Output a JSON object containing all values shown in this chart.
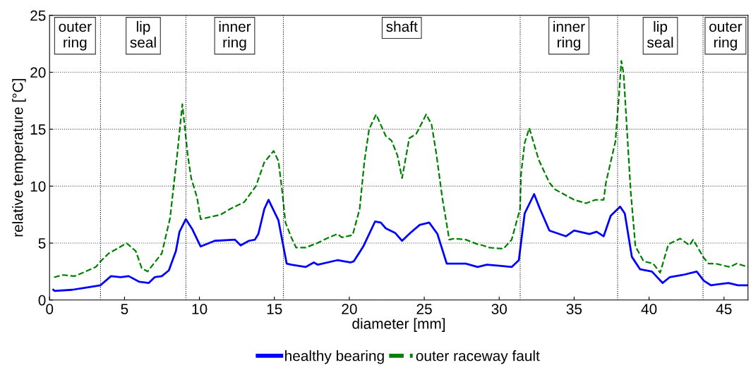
{
  "chart_data": {
    "type": "line",
    "xlabel": "diameter [mm]",
    "ylabel": "relative temperature [°C]",
    "xlim": [
      0,
      46.6
    ],
    "ylim": [
      0,
      25
    ],
    "xticks": [
      0,
      5,
      10,
      15,
      20,
      25,
      30,
      35,
      40,
      45
    ],
    "yticks": [
      0,
      5,
      10,
      15,
      20,
      25
    ],
    "grid": "y",
    "legend": "bottom",
    "ref_lines": [
      {
        "axis": "x",
        "value": 3.4,
        "color": "#000000",
        "line_style": "dotted"
      },
      {
        "axis": "x",
        "value": 9.1,
        "color": "#000000",
        "line_style": "dotted"
      },
      {
        "axis": "x",
        "value": 15.6,
        "color": "#000000",
        "line_style": "dotted"
      },
      {
        "axis": "x",
        "value": 31.4,
        "color": "#000000",
        "line_style": "dotted"
      },
      {
        "axis": "x",
        "value": 37.9,
        "color": "#000000",
        "line_style": "dotted"
      },
      {
        "axis": "x",
        "value": 43.6,
        "color": "#000000",
        "line_style": "dotted"
      }
    ],
    "annotations": [
      "outer\nring",
      "lip\nseal",
      "inner\nring",
      "shaft",
      "inner\nring",
      "lip\nseal",
      "outer\nring"
    ],
    "series": [
      {
        "name": "healthy bearing",
        "color": "#0000ff",
        "line_style": "solid",
        "x": [
          0.25,
          0.33,
          1.51,
          2.45,
          3.4,
          4.1,
          4.74,
          5.28,
          5.99,
          6.62,
          7.01,
          7.49,
          7.96,
          8.43,
          8.67,
          9.09,
          9.53,
          10.08,
          11.02,
          12.37,
          12.75,
          13.3,
          13.7,
          13.93,
          14.33,
          14.61,
          15.27,
          15.5,
          15.82,
          16.13,
          17.08,
          17.63,
          17.9,
          19.2,
          20.07,
          20.3,
          20.93,
          21.72,
          22.1,
          22.43,
          23.05,
          23.52,
          24.07,
          24.7,
          25.33,
          25.88,
          26.5,
          27.14,
          27.77,
          28.56,
          29.18,
          30.13,
          30.83,
          31.31,
          31.7,
          32.33,
          32.72,
          33.35,
          34.45,
          35.0,
          36.02,
          36.5,
          36.97,
          37.44,
          38.07,
          38.38,
          38.85,
          39.4,
          40.19,
          40.9,
          41.37,
          42.24,
          43.18,
          43.65,
          44.12,
          45.3,
          45.93,
          46.6
        ],
        "values": [
          0.9,
          0.8,
          0.9,
          1.1,
          1.3,
          2.1,
          2.0,
          2.1,
          1.6,
          1.5,
          2.0,
          2.1,
          2.6,
          4.3,
          6.0,
          7.1,
          6.2,
          4.7,
          5.2,
          5.3,
          4.8,
          5.2,
          5.3,
          5.8,
          8.0,
          8.8,
          7.0,
          5.4,
          3.2,
          3.1,
          2.9,
          3.3,
          3.1,
          3.5,
          3.3,
          3.4,
          4.7,
          6.9,
          6.8,
          6.3,
          5.9,
          5.2,
          5.9,
          6.6,
          6.8,
          5.8,
          3.2,
          3.2,
          3.2,
          2.9,
          3.1,
          3.0,
          2.9,
          3.5,
          7.6,
          9.3,
          8.0,
          6.1,
          5.6,
          6.1,
          5.8,
          6.0,
          5.6,
          7.4,
          8.2,
          7.6,
          3.8,
          2.7,
          2.5,
          1.5,
          2.0,
          2.2,
          2.5,
          1.7,
          1.3,
          1.5,
          1.3,
          1.3
        ]
      },
      {
        "name": "outer raceway fault",
        "color": "#008000",
        "line_style": "dashed",
        "x": [
          0.3,
          0.88,
          1.67,
          2.22,
          3.08,
          3.48,
          3.95,
          4.5,
          5.13,
          5.75,
          6.15,
          6.54,
          7.49,
          8.04,
          8.51,
          8.86,
          9.22,
          9.45,
          9.84,
          10.08,
          11.42,
          12.05,
          12.99,
          13.77,
          14.33,
          14.95,
          15.27,
          15.5,
          15.74,
          16.13,
          16.45,
          17.08,
          17.86,
          18.65,
          19.2,
          19.5,
          20.22,
          20.69,
          21.0,
          21.32,
          21.79,
          22.43,
          22.82,
          23.21,
          23.52,
          24.0,
          24.47,
          25.13,
          25.49,
          25.8,
          26.2,
          26.67,
          27.0,
          27.77,
          28.56,
          28.9,
          29.34,
          30.28,
          30.83,
          31.39,
          31.46,
          31.7,
          32.01,
          32.64,
          33.35,
          33.74,
          35.0,
          35.79,
          36.42,
          36.97,
          37.12,
          37.75,
          37.99,
          38.15,
          38.3,
          38.77,
          39.09,
          39.64,
          40.27,
          40.74,
          41.29,
          42.08,
          42.7,
          42.94,
          43.65,
          43.97,
          44.43,
          45.38,
          45.85,
          46.6
        ],
        "values": [
          2.0,
          2.2,
          2.1,
          2.4,
          2.9,
          3.5,
          4.1,
          4.5,
          5.0,
          4.3,
          2.8,
          2.5,
          4.1,
          7.2,
          12.7,
          17.2,
          12.7,
          10.7,
          9.0,
          7.1,
          7.5,
          8.0,
          8.6,
          10.0,
          12.1,
          13.1,
          12.2,
          9.8,
          6.8,
          5.5,
          4.6,
          4.6,
          5.0,
          5.5,
          5.8,
          5.5,
          5.7,
          8.0,
          12.1,
          15.0,
          16.3,
          14.4,
          14.0,
          12.7,
          10.7,
          14.2,
          14.6,
          16.3,
          15.4,
          12.9,
          9.0,
          5.3,
          5.4,
          5.3,
          4.9,
          4.8,
          4.6,
          4.5,
          5.3,
          8.0,
          11.1,
          13.8,
          15.1,
          12.3,
          10.3,
          9.7,
          8.8,
          8.5,
          8.8,
          8.8,
          10.3,
          13.9,
          17.9,
          21.0,
          19.9,
          9.6,
          4.7,
          3.4,
          3.2,
          2.4,
          4.9,
          5.4,
          4.8,
          5.3,
          3.7,
          3.2,
          3.2,
          2.9,
          3.2,
          2.9
        ]
      }
    ]
  }
}
